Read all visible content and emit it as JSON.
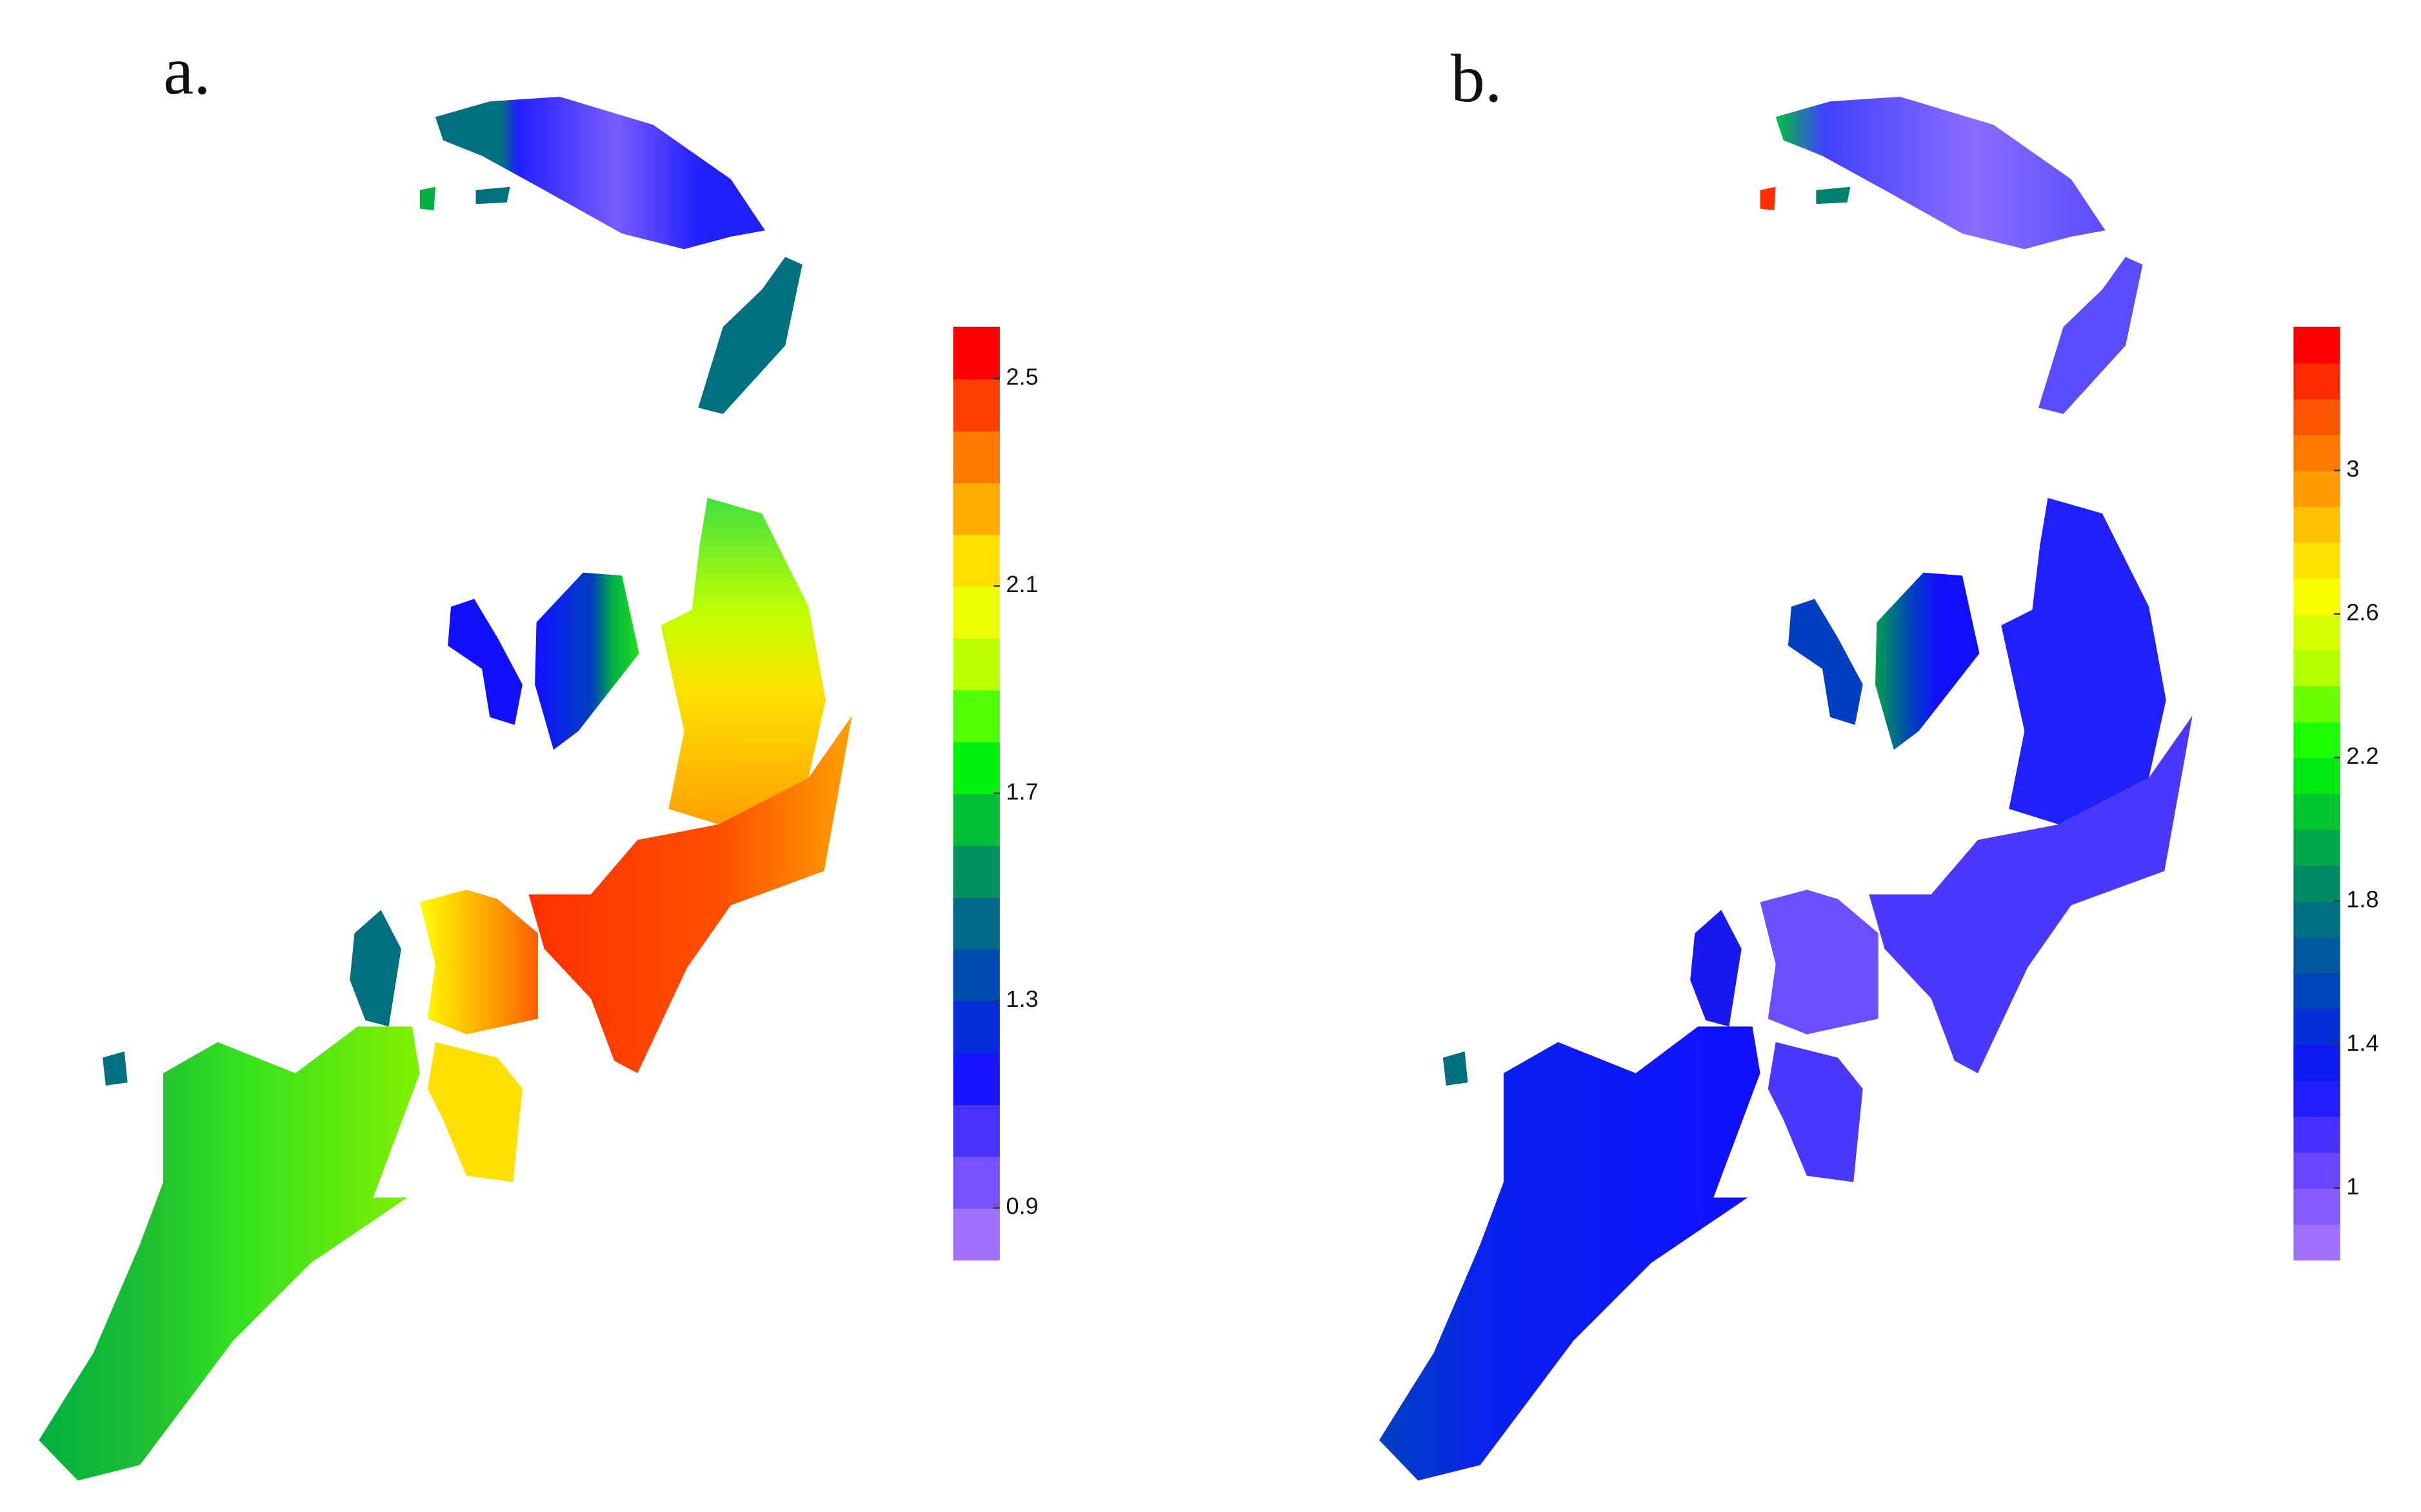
{
  "panels": [
    {
      "label": "a.",
      "colorbar": {
        "range": [
          0.8,
          2.6
        ],
        "bands": 18,
        "ticks": [
          0.9,
          1.3,
          1.7,
          2.1,
          2.5
        ]
      }
    },
    {
      "label": "b.",
      "colorbar": {
        "range": [
          0.8,
          3.4
        ],
        "bands": 26,
        "ticks": [
          1,
          1.4,
          1.8,
          2.2,
          2.6,
          3
        ]
      }
    }
  ],
  "palette": [
    "#a070ff",
    "#6040ff",
    "#1010ff",
    "#0040c0",
    "#007080",
    "#00b040",
    "#00ff00",
    "#b0ff00",
    "#ffff00",
    "#ffb000",
    "#ff6000",
    "#ff0000"
  ]
}
